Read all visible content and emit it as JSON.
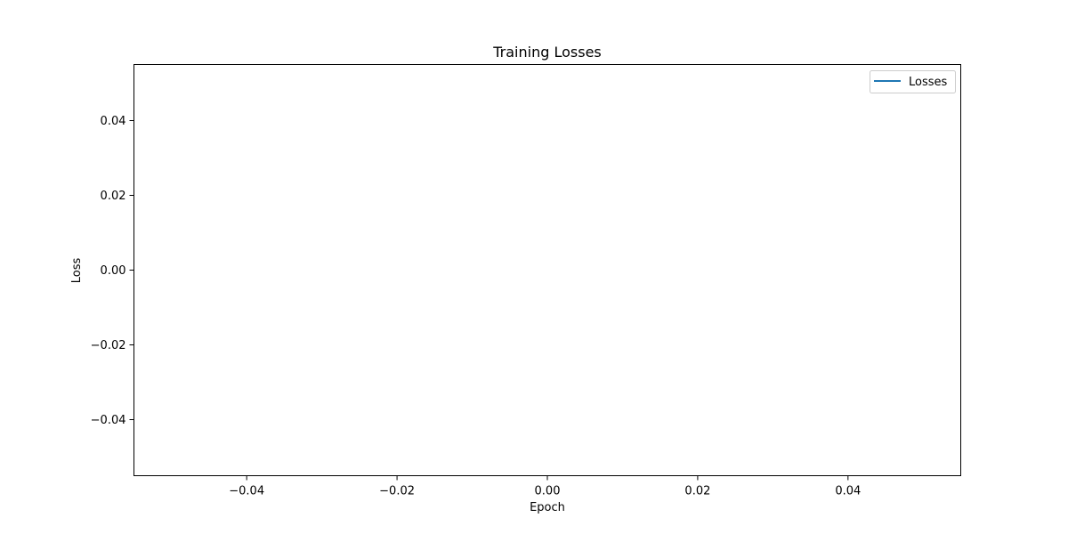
{
  "chart_data": {
    "type": "line",
    "title": "Training Losses",
    "xlabel": "Epoch",
    "ylabel": "Loss",
    "xlim": [
      -0.055,
      0.055
    ],
    "ylim": [
      -0.055,
      0.055
    ],
    "x_ticks": [
      -0.04,
      -0.02,
      0.0,
      0.02,
      0.04
    ],
    "x_tick_labels": [
      "−0.04",
      "−0.02",
      "0.00",
      "0.02",
      "0.04"
    ],
    "y_ticks": [
      -0.04,
      -0.02,
      0.0,
      0.02,
      0.04
    ],
    "y_tick_labels": [
      "−0.04",
      "−0.02",
      "0.00",
      "0.02",
      "0.04"
    ],
    "grid": false,
    "legend_position": "top-right",
    "series": [
      {
        "name": "Losses",
        "color": "#1f77b4",
        "x": [],
        "y": []
      }
    ]
  }
}
